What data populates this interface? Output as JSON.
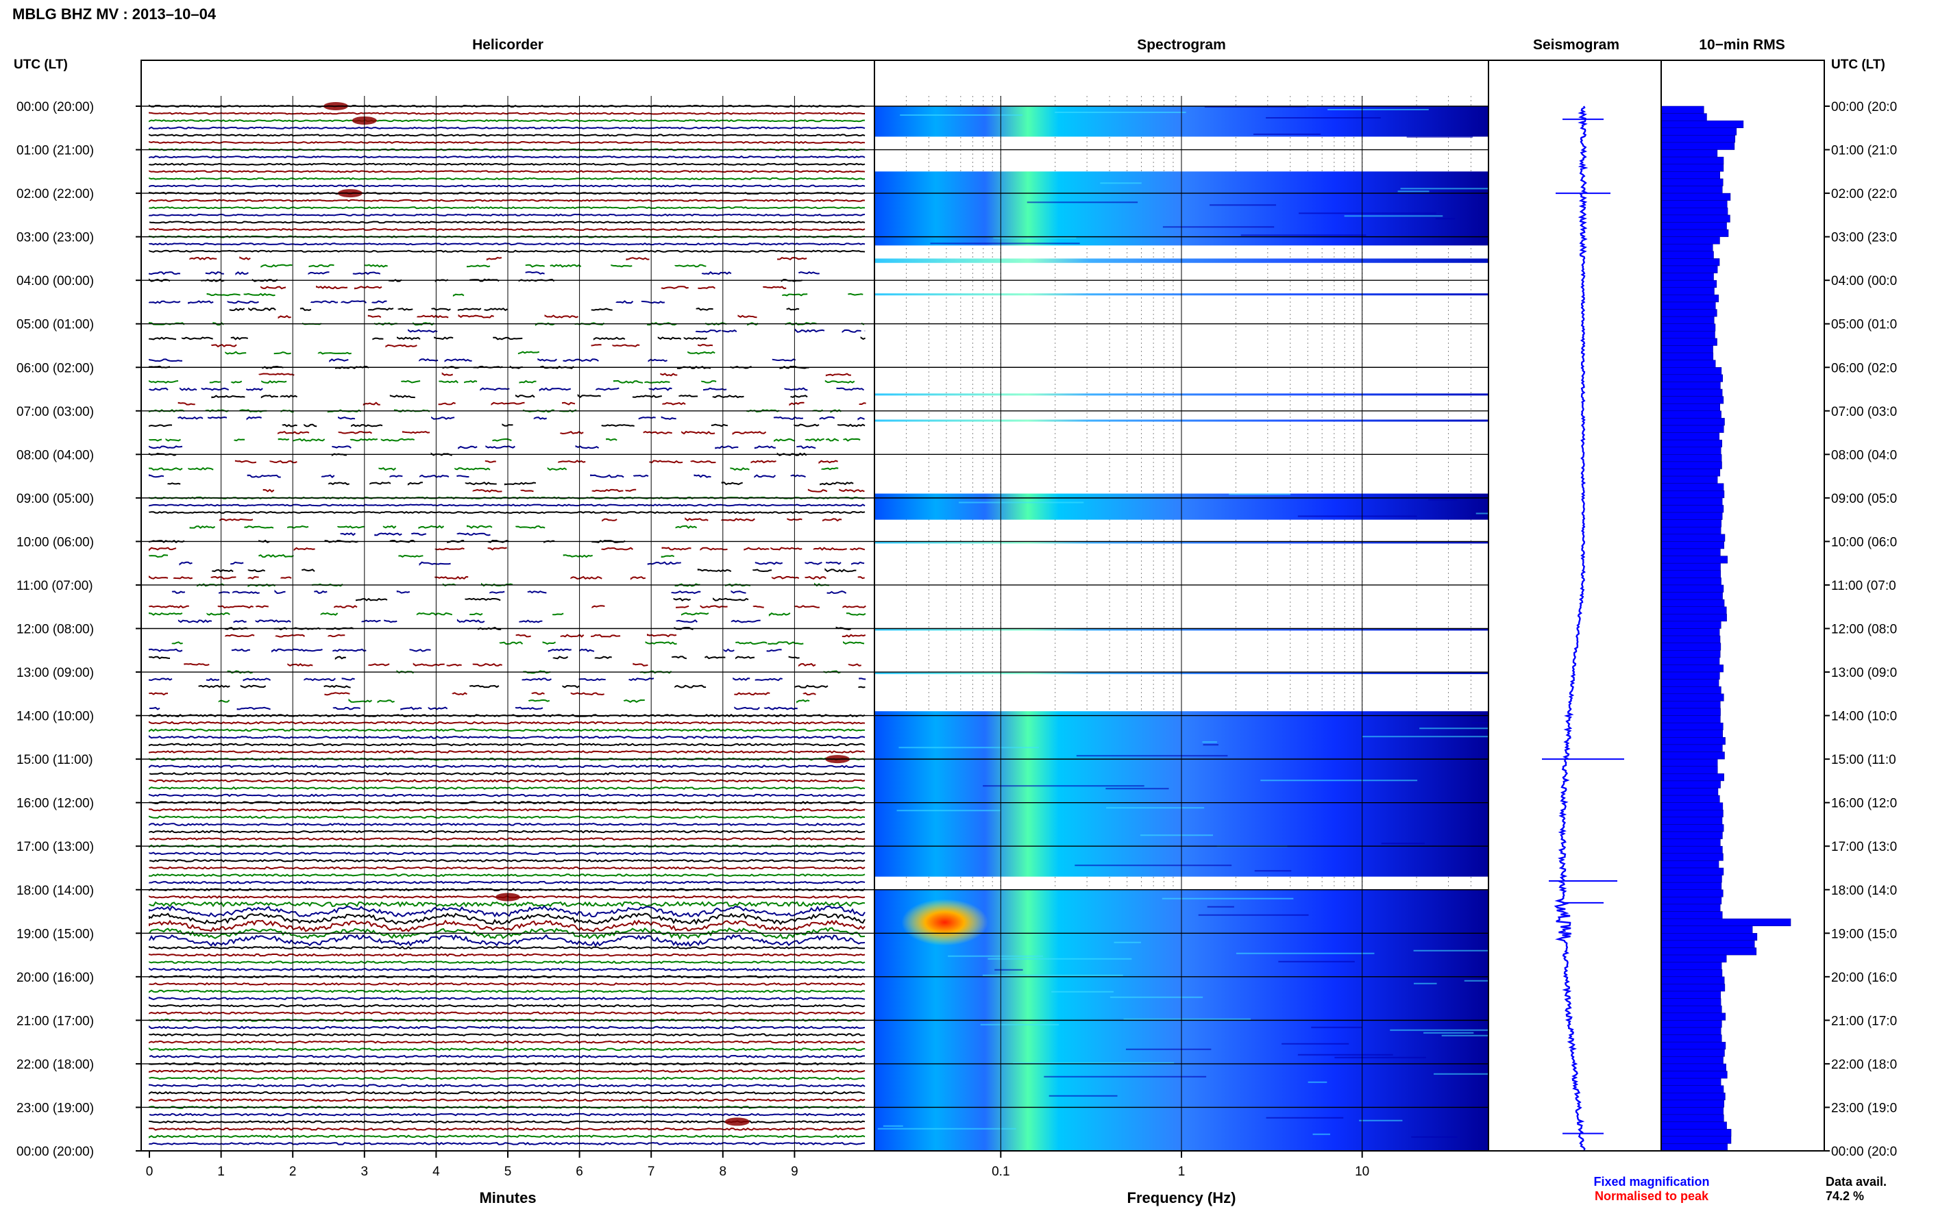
{
  "header": {
    "station_title": "MBLG BHZ MV : 2013–10–04"
  },
  "time_axis": {
    "left_title": "UTC (LT)",
    "right_title": "UTC (LT)",
    "labels": [
      "00:00 (20:00)",
      "01:00 (21:00)",
      "02:00 (22:00)",
      "03:00 (23:00)",
      "04:00 (00:00)",
      "05:00 (01:00)",
      "06:00 (02:00)",
      "07:00 (03:00)",
      "08:00 (04:00)",
      "09:00 (05:00)",
      "10:00 (06:00)",
      "11:00 (07:00)",
      "12:00 (08:00)",
      "13:00 (09:00)",
      "14:00 (10:00)",
      "15:00 (11:00)",
      "16:00 (12:00)",
      "17:00 (13:00)",
      "18:00 (14:00)",
      "19:00 (15:00)",
      "20:00 (16:00)",
      "21:00 (17:00)",
      "22:00 (18:00)",
      "23:00 (19:00)",
      "00:00 (20:00)"
    ],
    "right_labels": [
      "00:00 (20:0",
      "01:00 (21:0",
      "02:00 (22:0",
      "03:00 (23:0",
      "04:00 (00:0",
      "05:00 (01:0",
      "06:00 (02:0",
      "07:00 (03:0",
      "08:00 (04:0",
      "09:00 (05:0",
      "10:00 (06:0",
      "11:00 (07:0",
      "12:00 (08:0",
      "13:00 (09:0",
      "14:00 (10:0",
      "15:00 (11:0",
      "16:00 (12:0",
      "17:00 (13:0",
      "18:00 (14:0",
      "19:00 (15:0",
      "20:00 (16:0",
      "21:00 (17:0",
      "22:00 (18:0",
      "23:00 (19:0",
      "00:00 (20:0"
    ]
  },
  "footer": {
    "fixed_magnification": "Fixed magnification",
    "normalised_to_peak": "Normalised to peak",
    "data_avail_label": "Data avail.",
    "data_avail_value": "74.2 %"
  },
  "colors": {
    "trace_cycle": [
      "#000000",
      "#8b0000",
      "#008000",
      "#00008b"
    ],
    "fixed_magnification": "#0000ff",
    "normalised_to_peak": "#ff0000",
    "seismogram": "#0000ff",
    "rms": "#0000ff",
    "spectrogram_scale": [
      "#00007f",
      "#0000ff",
      "#0080ff",
      "#00ffff",
      "#80ff80",
      "#ffff00",
      "#ff8000",
      "#ff0000"
    ]
  },
  "chart_data": [
    {
      "type": "line",
      "panel": "helicorder",
      "title": "Helicorder",
      "xlabel": "Minutes",
      "ylabel": "",
      "xlim": [
        0,
        10
      ],
      "xticks": [
        0,
        1,
        2,
        3,
        4,
        5,
        6,
        7,
        8,
        9
      ],
      "rows_per_hour": 6,
      "total_rows": 144,
      "grid": true,
      "events": [
        {
          "hour": 0.0,
          "minute": 2.6
        },
        {
          "hour": 0.33,
          "minute": 3.0
        },
        {
          "hour": 2.0,
          "minute": 2.8
        },
        {
          "hour": 15.0,
          "minute": 9.6
        },
        {
          "hour": 18.17,
          "minute": 5.0
        },
        {
          "hour": 23.33,
          "minute": 8.2
        }
      ]
    },
    {
      "type": "heatmap",
      "panel": "spectrogram",
      "title": "Spectrogram",
      "xlabel": "Frequency (Hz)",
      "x_scale": "log",
      "xlim": [
        0.02,
        50
      ],
      "xticks": [
        0.1,
        1,
        10
      ],
      "xtick_labels": [
        "0.1",
        "1",
        "10"
      ],
      "grid": true,
      "data_segments_hours": [
        [
          0.0,
          0.7
        ],
        [
          1.5,
          3.2
        ],
        [
          3.5,
          3.6
        ],
        [
          8.9,
          9.5
        ],
        [
          13.9,
          17.7
        ],
        [
          18.0,
          24.0
        ]
      ],
      "peak": {
        "hour_range": [
          18.5,
          19.0
        ],
        "freq_range_hz": [
          0.04,
          0.06
        ]
      }
    },
    {
      "type": "line",
      "panel": "seismogram",
      "title": "Seismogram",
      "xlabel": "",
      "ylabel": ""
    },
    {
      "type": "bar",
      "panel": "rms",
      "title": "10−min RMS",
      "orientation": "horizontal",
      "bin_minutes": 10,
      "relative_values_by_hour": [
        {
          "hour": 0.0,
          "value": 0.3
        },
        {
          "hour": 0.3,
          "value": 0.55
        },
        {
          "hour": 0.5,
          "value": 0.5
        },
        {
          "hour": 1.0,
          "value": 0.4
        },
        {
          "hour": 2.0,
          "value": 0.45
        },
        {
          "hour": 3.0,
          "value": 0.37
        },
        {
          "hour": 6.0,
          "value": 0.4
        },
        {
          "hour": 9.0,
          "value": 0.42
        },
        {
          "hour": 12.0,
          "value": 0.4
        },
        {
          "hour": 14.0,
          "value": 0.42
        },
        {
          "hour": 15.0,
          "value": 0.4
        },
        {
          "hour": 18.6,
          "value": 0.85
        },
        {
          "hour": 18.8,
          "value": 0.62
        },
        {
          "hour": 19.5,
          "value": 0.42
        },
        {
          "hour": 23.5,
          "value": 0.45
        }
      ]
    }
  ]
}
